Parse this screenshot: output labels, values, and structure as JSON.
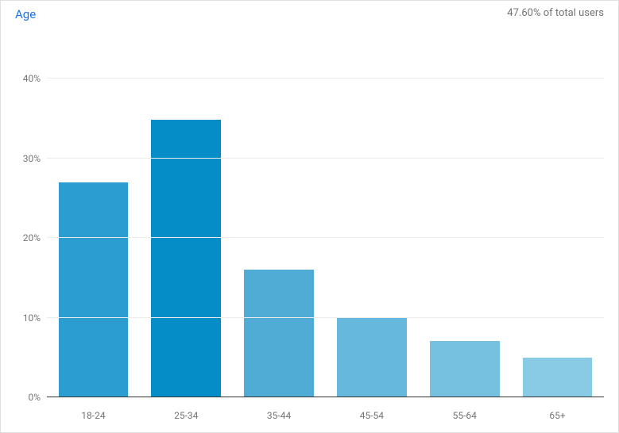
{
  "header": {
    "title": "Age",
    "title_color": "#1a73e8",
    "title_fontsize": 15,
    "subtitle": "47.60% of total users",
    "subtitle_color": "#757575",
    "subtitle_fontsize": 13
  },
  "chart": {
    "type": "bar",
    "categories": [
      "18-24",
      "25-34",
      "35-44",
      "45-54",
      "55-64",
      "65+"
    ],
    "values": [
      27.0,
      34.8,
      16.0,
      10.1,
      7.1,
      5.0
    ],
    "bar_colors": [
      "#2б9dd0",
      "#058dc7",
      "#50abd5",
      "#66b8dc",
      "#77c1e0",
      "#89cae5"
    ],
    "_bar_colors_safe": [
      "#2b9dd0",
      "#058dc7",
      "#50abd5",
      "#66b8dc",
      "#77c1e0",
      "#89cae5"
    ],
    "y_ticks": [
      0,
      10,
      20,
      30,
      40
    ],
    "y_max": 45,
    "y_label_suffix": "%",
    "grid_color": "#ebebeb",
    "baseline_color": "#333333",
    "axis_label_color": "#757575",
    "axis_label_fontsize": 12,
    "bar_width_ratio": 0.75,
    "background_color": "#ffffff"
  }
}
